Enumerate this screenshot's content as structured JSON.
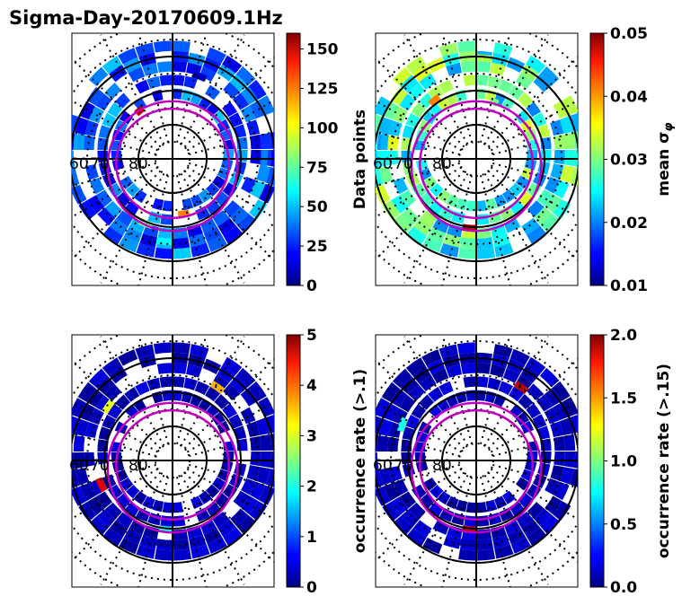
{
  "title": "Sigma-Day-20170609.1Hz",
  "chart_data": [
    {
      "type": "heatmap",
      "panel": "top-left",
      "colorbar": {
        "label": "Data points",
        "min": 0,
        "max": 160,
        "ticks": [
          "0",
          "25",
          "50",
          "75",
          "100",
          "125",
          "150"
        ],
        "tick_values": [
          0,
          25,
          50,
          75,
          100,
          125,
          150
        ]
      },
      "lat_labels": [
        "60",
        "70",
        "80"
      ],
      "cells": [
        {
          "mlat": 62,
          "mlt": 0,
          "v": 60
        },
        {
          "mlat": 62,
          "mlt": 6,
          "v": 45
        },
        {
          "mlat": 62,
          "mlt": 12,
          "v": 25
        },
        {
          "mlat": 62,
          "mlt": 18,
          "v": 40
        },
        {
          "mlat": 66,
          "mlt": 1,
          "v": 80
        },
        {
          "mlat": 66,
          "mlt": 13,
          "v": 10
        },
        {
          "mlat": 70,
          "mlt": 23,
          "v": 120
        },
        {
          "mlat": 74,
          "mlt": 9,
          "v": 150
        }
      ]
    },
    {
      "type": "heatmap",
      "panel": "top-right",
      "colorbar": {
        "label": "mean σ_φ",
        "min": 0.01,
        "max": 0.05,
        "ticks": [
          "0.01",
          "0.02",
          "0.03",
          "0.04",
          "0.05"
        ],
        "tick_values": [
          0.01,
          0.02,
          0.03,
          0.04,
          0.05
        ]
      },
      "lat_labels": [
        "60",
        "70",
        "80"
      ],
      "cells": [
        {
          "mlat": 62,
          "mlt": 0,
          "v": 0.028
        },
        {
          "mlat": 62,
          "mlt": 6,
          "v": 0.022
        },
        {
          "mlat": 62,
          "mlt": 12,
          "v": 0.032
        },
        {
          "mlat": 66,
          "mlt": 0,
          "v": 0.048
        },
        {
          "mlat": 70,
          "mlt": 9,
          "v": 0.04
        },
        {
          "mlat": 74,
          "mlt": 13,
          "v": 0.03
        }
      ]
    },
    {
      "type": "heatmap",
      "panel": "bottom-left",
      "colorbar": {
        "label": "occurrence rate (>.1)",
        "min": 0,
        "max": 5,
        "ticks": [
          "0",
          "1",
          "2",
          "3",
          "4",
          "5"
        ],
        "tick_values": [
          0,
          1,
          2,
          3,
          4,
          5
        ]
      },
      "lat_labels": [
        "60",
        "70",
        "80"
      ],
      "cells": [
        {
          "mlat": 62,
          "mlt": 0,
          "v": 0.2
        },
        {
          "mlat": 66,
          "mlt": 0,
          "v": 2.0
        },
        {
          "mlat": 66,
          "mlt": 4,
          "v": 4.5
        },
        {
          "mlat": 66,
          "mlt": 14,
          "v": 3.5
        },
        {
          "mlat": 66,
          "mlt": 8,
          "v": 3.0
        }
      ]
    },
    {
      "type": "heatmap",
      "panel": "bottom-right",
      "colorbar": {
        "label": "occurrence rate (>.15)",
        "min": 0,
        "max": 2,
        "ticks": [
          "0.0",
          "0.5",
          "1.0",
          "1.5",
          "2.0"
        ],
        "tick_values": [
          0,
          0.5,
          1.0,
          1.5,
          2.0
        ]
      },
      "lat_labels": [
        "60",
        "70",
        "80"
      ],
      "cells": [
        {
          "mlat": 62,
          "mlt": 0,
          "v": 0.1
        },
        {
          "mlat": 66,
          "mlt": 0,
          "v": 1.9
        },
        {
          "mlat": 66,
          "mlt": 14,
          "v": 1.9
        },
        {
          "mlat": 66,
          "mlt": 7,
          "v": 0.8
        }
      ]
    }
  ]
}
